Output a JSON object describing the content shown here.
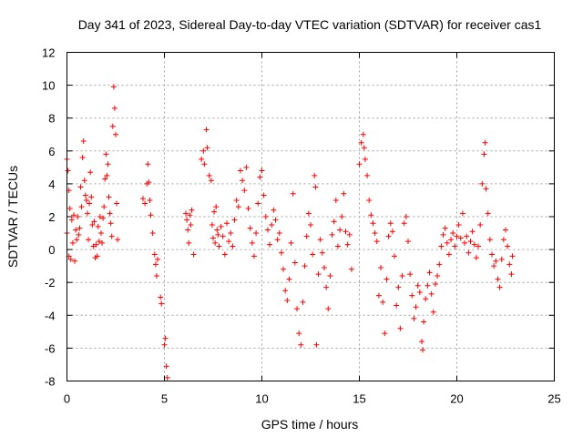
{
  "chart_data": {
    "type": "scatter",
    "title": "Day 341 of 2023, Sidereal Day-to-day VTEC variation (SDTVAR) for receiver cas1",
    "xlabel": "GPS time / hours",
    "ylabel": "SDTVAR / TECUs",
    "xlim": [
      0,
      25
    ],
    "ylim": [
      -8,
      12
    ],
    "xticks": [
      0,
      5,
      10,
      15,
      20,
      25
    ],
    "yticks": [
      -8,
      -6,
      -4,
      -2,
      0,
      2,
      4,
      6,
      8,
      10,
      12
    ],
    "grid": true,
    "marker": "+",
    "color": "#ff0000",
    "series": [
      {
        "name": "SDTVAR",
        "points": [
          [
            0.0,
            1.0
          ],
          [
            0.0,
            5.5
          ],
          [
            0.05,
            4.8
          ],
          [
            0.1,
            3.6
          ],
          [
            0.1,
            -0.4
          ],
          [
            0.15,
            2.5
          ],
          [
            0.2,
            -0.6
          ],
          [
            0.25,
            1.8
          ],
          [
            0.3,
            0.4
          ],
          [
            0.35,
            2.1
          ],
          [
            0.4,
            -0.7
          ],
          [
            0.45,
            1.2
          ],
          [
            0.5,
            0.6
          ],
          [
            0.55,
            2.0
          ],
          [
            0.6,
            0.9
          ],
          [
            0.65,
            1.3
          ],
          [
            0.7,
            3.8
          ],
          [
            0.75,
            2.6
          ],
          [
            0.8,
            5.6
          ],
          [
            0.85,
            6.6
          ],
          [
            0.9,
            4.2
          ],
          [
            0.95,
            3.3
          ],
          [
            1.0,
            3.0
          ],
          [
            1.05,
            2.2
          ],
          [
            1.1,
            0.6
          ],
          [
            1.15,
            2.8
          ],
          [
            1.2,
            4.7
          ],
          [
            1.25,
            3.2
          ],
          [
            1.3,
            1.5
          ],
          [
            1.35,
            0.2
          ],
          [
            1.4,
            1.7
          ],
          [
            1.45,
            -0.5
          ],
          [
            1.5,
            0.3
          ],
          [
            1.55,
            -0.4
          ],
          [
            1.6,
            1.4
          ],
          [
            1.65,
            0.5
          ],
          [
            1.7,
            2.0
          ],
          [
            1.75,
            1.0
          ],
          [
            1.8,
            0.4
          ],
          [
            1.85,
            1.9
          ],
          [
            1.9,
            2.6
          ],
          [
            1.95,
            4.3
          ],
          [
            2.0,
            5.8
          ],
          [
            2.05,
            4.5
          ],
          [
            2.1,
            5.2
          ],
          [
            2.15,
            3.2
          ],
          [
            2.2,
            2.2
          ],
          [
            2.25,
            1.6
          ],
          [
            2.3,
            0.8
          ],
          [
            2.35,
            7.5
          ],
          [
            2.4,
            9.9
          ],
          [
            2.45,
            8.6
          ],
          [
            2.5,
            7.0
          ],
          [
            2.55,
            2.8
          ],
          [
            2.6,
            0.6
          ],
          [
            3.9,
            3.1
          ],
          [
            4.0,
            2.8
          ],
          [
            4.1,
            4.0
          ],
          [
            4.15,
            5.2
          ],
          [
            4.2,
            4.1
          ],
          [
            4.25,
            3.0
          ],
          [
            4.3,
            2.1
          ],
          [
            4.4,
            1.0
          ],
          [
            4.5,
            -0.3
          ],
          [
            4.55,
            -0.9
          ],
          [
            4.6,
            -1.6
          ],
          [
            4.65,
            -0.6
          ],
          [
            4.8,
            -2.9
          ],
          [
            4.85,
            -3.3
          ],
          [
            5.0,
            -5.8
          ],
          [
            5.05,
            -5.4
          ],
          [
            5.1,
            -7.1
          ],
          [
            5.15,
            -7.8
          ],
          [
            6.1,
            2.2
          ],
          [
            6.15,
            1.8
          ],
          [
            6.2,
            1.2
          ],
          [
            6.25,
            0.4
          ],
          [
            6.3,
            2.1
          ],
          [
            6.35,
            1.5
          ],
          [
            6.4,
            2.4
          ],
          [
            6.5,
            -0.3
          ],
          [
            6.9,
            5.5
          ],
          [
            7.0,
            6.0
          ],
          [
            7.05,
            5.2
          ],
          [
            7.15,
            7.3
          ],
          [
            7.2,
            6.2
          ],
          [
            7.3,
            4.5
          ],
          [
            7.4,
            4.2
          ],
          [
            7.45,
            1.5
          ],
          [
            7.5,
            0.7
          ],
          [
            7.55,
            2.3
          ],
          [
            7.6,
            0.4
          ],
          [
            7.65,
            2.6
          ],
          [
            7.7,
            1.2
          ],
          [
            7.75,
            0.9
          ],
          [
            7.8,
            0.2
          ],
          [
            7.9,
            1.4
          ],
          [
            8.0,
            0.8
          ],
          [
            8.1,
            -0.3
          ],
          [
            8.2,
            1.6
          ],
          [
            8.3,
            0.5
          ],
          [
            8.4,
            1.0
          ],
          [
            8.5,
            0.2
          ],
          [
            8.6,
            1.8
          ],
          [
            8.7,
            3.0
          ],
          [
            8.8,
            2.6
          ],
          [
            8.9,
            4.8
          ],
          [
            9.0,
            4.2
          ],
          [
            9.1,
            3.6
          ],
          [
            9.2,
            5.0
          ],
          [
            9.3,
            2.5
          ],
          [
            9.4,
            1.3
          ],
          [
            9.5,
            0.4
          ],
          [
            9.6,
            -0.4
          ],
          [
            9.7,
            1.0
          ],
          [
            9.8,
            2.8
          ],
          [
            9.9,
            4.4
          ],
          [
            10.0,
            4.8
          ],
          [
            10.1,
            3.3
          ],
          [
            10.2,
            2.0
          ],
          [
            10.3,
            1.2
          ],
          [
            10.4,
            0.3
          ],
          [
            10.5,
            1.5
          ],
          [
            10.6,
            2.4
          ],
          [
            10.7,
            1.8
          ],
          [
            10.8,
            0.6
          ],
          [
            10.9,
            1.0
          ],
          [
            11.0,
            -0.2
          ],
          [
            11.1,
            -1.2
          ],
          [
            11.2,
            -2.5
          ],
          [
            11.3,
            -3.1
          ],
          [
            11.4,
            -1.8
          ],
          [
            11.5,
            0.4
          ],
          [
            11.6,
            3.4
          ],
          [
            11.7,
            -0.8
          ],
          [
            11.8,
            -3.6
          ],
          [
            11.9,
            -5.1
          ],
          [
            12.0,
            -5.8
          ],
          [
            12.1,
            -3.2
          ],
          [
            12.2,
            -1.0
          ],
          [
            12.3,
            0.8
          ],
          [
            12.4,
            2.2
          ],
          [
            12.5,
            1.5
          ],
          [
            12.6,
            -0.3
          ],
          [
            12.7,
            4.5
          ],
          [
            12.75,
            3.8
          ],
          [
            12.8,
            -5.8
          ],
          [
            12.9,
            -1.5
          ],
          [
            13.0,
            0.6
          ],
          [
            13.1,
            -0.2
          ],
          [
            13.2,
            -1.1
          ],
          [
            13.3,
            -2.3
          ],
          [
            13.4,
            -3.6
          ],
          [
            13.5,
            -1.6
          ],
          [
            13.6,
            0.9
          ],
          [
            13.7,
            1.7
          ],
          [
            13.8,
            3.0
          ],
          [
            13.9,
            0.2
          ],
          [
            14.0,
            1.2
          ],
          [
            14.1,
            2.0
          ],
          [
            14.2,
            3.4
          ],
          [
            14.3,
            1.1
          ],
          [
            14.4,
            0.3
          ],
          [
            14.5,
            0.9
          ],
          [
            14.6,
            -1.2
          ],
          [
            15.0,
            5.2
          ],
          [
            15.1,
            6.5
          ],
          [
            15.2,
            7.0
          ],
          [
            15.25,
            6.2
          ],
          [
            15.3,
            5.5
          ],
          [
            15.4,
            4.5
          ],
          [
            15.5,
            3.0
          ],
          [
            15.6,
            2.1
          ],
          [
            15.7,
            1.6
          ],
          [
            15.8,
            1.0
          ],
          [
            15.9,
            0.5
          ],
          [
            16.0,
            -2.8
          ],
          [
            16.1,
            -1.1
          ],
          [
            16.2,
            -3.2
          ],
          [
            16.3,
            -5.1
          ],
          [
            16.4,
            -1.8
          ],
          [
            16.5,
            0.8
          ],
          [
            16.6,
            1.6
          ],
          [
            16.7,
            1.1
          ],
          [
            16.8,
            -0.4
          ],
          [
            16.9,
            -3.4
          ],
          [
            17.0,
            -2.3
          ],
          [
            17.1,
            -4.8
          ],
          [
            17.2,
            -1.6
          ],
          [
            17.3,
            1.6
          ],
          [
            17.4,
            2.0
          ],
          [
            17.5,
            0.5
          ],
          [
            17.6,
            -1.5
          ],
          [
            17.7,
            -2.8
          ],
          [
            17.8,
            -4.2
          ],
          [
            17.9,
            -3.5
          ],
          [
            18.0,
            -2.2
          ],
          [
            18.1,
            -2.6
          ],
          [
            18.2,
            -5.6
          ],
          [
            18.25,
            -6.1
          ],
          [
            18.3,
            -4.4
          ],
          [
            18.4,
            -3.0
          ],
          [
            18.5,
            -2.2
          ],
          [
            18.6,
            -1.4
          ],
          [
            18.7,
            -2.7
          ],
          [
            18.8,
            -3.8
          ],
          [
            18.9,
            -2.1
          ],
          [
            19.0,
            -1.6
          ],
          [
            19.1,
            -0.9
          ],
          [
            19.2,
            0.2
          ],
          [
            19.3,
            0.9
          ],
          [
            19.4,
            1.3
          ],
          [
            19.5,
            0.4
          ],
          [
            19.6,
            -0.3
          ],
          [
            19.7,
            0.6
          ],
          [
            19.8,
            1.0
          ],
          [
            19.9,
            0.2
          ],
          [
            20.0,
            0.8
          ],
          [
            20.1,
            1.5
          ],
          [
            20.2,
            0.7
          ],
          [
            20.3,
            2.2
          ],
          [
            20.4,
            0.4
          ],
          [
            20.5,
            0.8
          ],
          [
            20.6,
            -0.2
          ],
          [
            20.7,
            0.5
          ],
          [
            20.8,
            1.1
          ],
          [
            20.9,
            0.3
          ],
          [
            21.0,
            -0.5
          ],
          [
            21.1,
            0.2
          ],
          [
            21.2,
            1.5
          ],
          [
            21.3,
            4.0
          ],
          [
            21.4,
            5.8
          ],
          [
            21.45,
            6.5
          ],
          [
            21.5,
            3.7
          ],
          [
            21.6,
            2.2
          ],
          [
            21.7,
            0.6
          ],
          [
            21.8,
            -0.3
          ],
          [
            21.9,
            -1.0
          ],
          [
            22.0,
            -0.7
          ],
          [
            22.1,
            -1.8
          ],
          [
            22.2,
            -2.3
          ],
          [
            22.3,
            -0.6
          ],
          [
            22.4,
            0.6
          ],
          [
            22.5,
            1.2
          ],
          [
            22.6,
            0.2
          ],
          [
            22.7,
            -0.9
          ],
          [
            22.8,
            -1.5
          ],
          [
            22.85,
            -0.4
          ]
        ]
      }
    ]
  }
}
